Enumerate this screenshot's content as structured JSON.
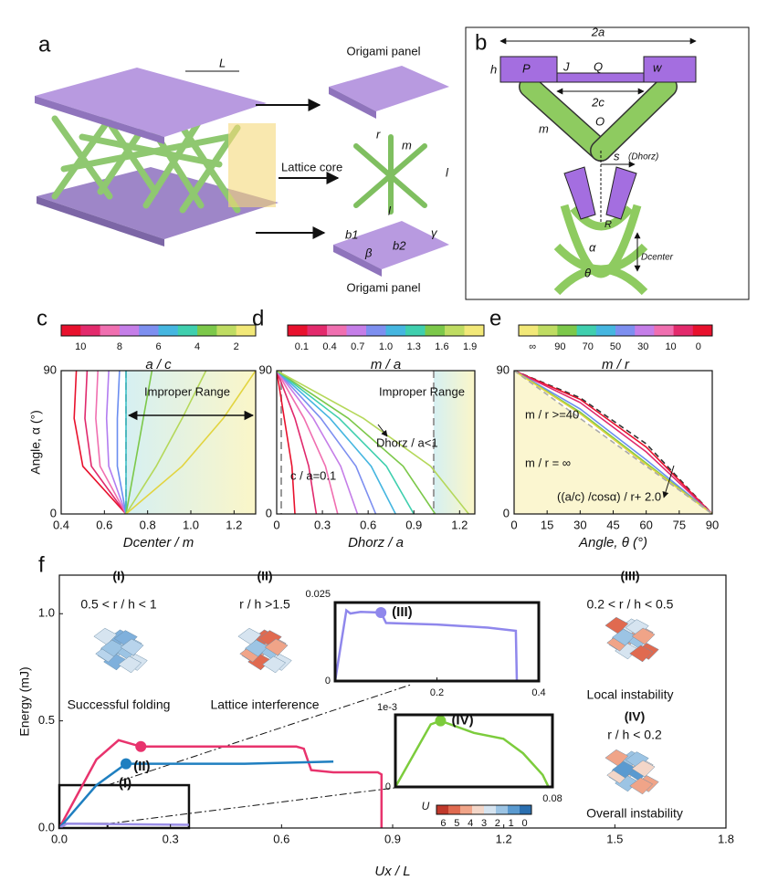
{
  "diagram_a": {
    "label": "a",
    "L": "L",
    "top_panel": "Origami panel",
    "core": "Lattice core",
    "r": "r",
    "m": "m",
    "l1": "l",
    "l2": "l",
    "b1": "b1",
    "b2": "b2",
    "beta": "β",
    "gamma": "γ",
    "bottom_panel": "Origami panel"
  },
  "diagram_b": {
    "label": "b",
    "texts": [
      "2a",
      "h",
      "P",
      "J",
      "Q",
      "w",
      "2c",
      "m",
      "O",
      "s",
      "(Dhorz)",
      "R",
      "α",
      "θ",
      "Dcenter"
    ]
  },
  "chart_data": [
    {
      "type": "line",
      "panel_label": "c",
      "xlabel": "Dcenter / m",
      "ylabel": "Angle, α (°)",
      "xlim": [
        0.4,
        1.3
      ],
      "ylim": [
        0,
        90
      ],
      "xticks": [
        0.4,
        0.6,
        0.8,
        {
          "value": 1,
          "label": "1.0"
        },
        1.2
      ],
      "yticks": [
        0,
        90
      ],
      "vlines": [
        0.7
      ],
      "colorbar": {
        "label": "a / c",
        "ticks": [
          10,
          8,
          6,
          4,
          2
        ],
        "colors": [
          "#e8112d",
          "#e32a6c",
          "#f06fb0",
          "#c57ee8",
          "#7d8ff0",
          "#45b6e0",
          "#3fcfae",
          "#7cc84a",
          "#bfdc62",
          "#f2e878"
        ]
      },
      "annotations": [
        "Improper Range"
      ],
      "series": [
        {
          "color": "#e8112d",
          "x": [
            0.7,
            0.5,
            0.46,
            0.47
          ],
          "values": [
            0,
            30,
            60,
            90
          ]
        },
        {
          "color": "#e0296d",
          "x": [
            0.7,
            0.54,
            0.51,
            0.52
          ],
          "values": [
            0,
            30,
            60,
            90
          ]
        },
        {
          "color": "#f06fb0",
          "x": [
            0.7,
            0.58,
            0.56,
            0.57
          ],
          "values": [
            0,
            30,
            60,
            90
          ]
        },
        {
          "color": "#b27cf0",
          "x": [
            0.7,
            0.62,
            0.61,
            0.62
          ],
          "values": [
            0,
            30,
            60,
            90
          ]
        },
        {
          "color": "#6a8df0",
          "x": [
            0.7,
            0.66,
            0.66,
            0.67
          ],
          "values": [
            0,
            30,
            60,
            90
          ]
        },
        {
          "color": "#3cc0c8",
          "x": [
            0.7,
            0.7,
            0.7,
            0.7
          ],
          "values": [
            0,
            30,
            60,
            90
          ]
        },
        {
          "color": "#7cc84a",
          "x": [
            0.7,
            0.74,
            0.78,
            0.82
          ],
          "values": [
            0,
            30,
            60,
            90
          ]
        },
        {
          "color": "#b5d85a",
          "x": [
            0.7,
            0.84,
            0.96,
            1.07
          ],
          "values": [
            0,
            30,
            60,
            90
          ]
        },
        {
          "color": "#e2d440",
          "x": [
            0.7,
            0.96,
            1.15,
            1.3
          ],
          "values": [
            0,
            30,
            60,
            90
          ]
        }
      ]
    },
    {
      "type": "line",
      "panel_label": "d",
      "xlabel": "Dhorz / a",
      "xlim": [
        0,
        1.3
      ],
      "ylim": [
        0,
        90
      ],
      "xticks": [
        0,
        0.3,
        0.6,
        0.9,
        1.2
      ],
      "yticks": [
        0,
        90
      ],
      "vlines": [
        0.03,
        1.03
      ],
      "colorbar": {
        "label": "m / a",
        "ticks": [
          0.1,
          0.4,
          0.7,
          {
            "value": 1,
            "label": "1.0"
          },
          1.3,
          1.6,
          1.9
        ],
        "colors": [
          "#e8112d",
          "#e32a6c",
          "#f06fb0",
          "#c57ee8",
          "#7d8ff0",
          "#45b6e0",
          "#3fcfae",
          "#7cc84a",
          "#bfdc62",
          "#f2e878"
        ]
      },
      "annotations": [
        "Improper Range",
        "c / a=0.1",
        "Dhorz / a<1"
      ],
      "series": [
        {
          "color": "#e8112d",
          "x": [
            0,
            0.05,
            0.1,
            0.12
          ],
          "values": [
            90,
            60,
            30,
            0
          ]
        },
        {
          "color": "#e0296d",
          "x": [
            0,
            0.12,
            0.21,
            0.26
          ],
          "values": [
            90,
            60,
            30,
            0
          ]
        },
        {
          "color": "#f06fb0",
          "x": [
            0,
            0.18,
            0.32,
            0.4
          ],
          "values": [
            90,
            60,
            30,
            0
          ]
        },
        {
          "color": "#c57ee8",
          "x": [
            0,
            0.24,
            0.42,
            0.53
          ],
          "values": [
            90,
            60,
            30,
            0
          ]
        },
        {
          "color": "#7d8ff0",
          "x": [
            0,
            0.29,
            0.52,
            0.65
          ],
          "values": [
            90,
            60,
            30,
            0
          ]
        },
        {
          "color": "#45b6e0",
          "x": [
            0,
            0.35,
            0.62,
            0.78
          ],
          "values": [
            90,
            60,
            30,
            0
          ]
        },
        {
          "color": "#3fcfae",
          "x": [
            0,
            0.41,
            0.72,
            0.9
          ],
          "values": [
            90,
            60,
            30,
            0
          ]
        },
        {
          "color": "#7cc84a",
          "x": [
            0,
            0.47,
            0.83,
            1.04
          ],
          "values": [
            90,
            60,
            30,
            0
          ]
        },
        {
          "color": "#b5d85a",
          "x": [
            0,
            0.57,
            1.01,
            1.26
          ],
          "values": [
            90,
            60,
            30,
            0
          ]
        }
      ]
    },
    {
      "type": "line",
      "panel_label": "e",
      "xlabel": "Angle, θ (°)",
      "xlim": [
        0,
        90
      ],
      "ylim": [
        0,
        90
      ],
      "xticks": [
        0,
        15,
        30,
        45,
        60,
        75,
        90
      ],
      "yticks": [
        0,
        90
      ],
      "colorbar": {
        "label": "m / r",
        "ticks": [
          "∞",
          90,
          70,
          50,
          30,
          10,
          0
        ],
        "colors": [
          "#f2e878",
          "#bfdc62",
          "#7cc84a",
          "#3fcfae",
          "#45b6e0",
          "#7d8ff0",
          "#c57ee8",
          "#f06fb0",
          "#e32a6c",
          "#e8112d"
        ]
      },
      "annotations": [
        "m / r >=40",
        "m / r = ∞",
        "((a/c) /cosα) / r+ 2.0"
      ],
      "series": [
        {
          "color": "#333333",
          "dash": true,
          "x": [
            0,
            30,
            60,
            90
          ],
          "values": [
            90,
            73,
            44,
            0
          ]
        },
        {
          "color": "#e8112d",
          "x": [
            0,
            30,
            60,
            90
          ],
          "values": [
            90,
            72,
            42,
            0
          ]
        },
        {
          "color": "#e0296d",
          "x": [
            0,
            30,
            60,
            90
          ],
          "values": [
            90,
            70,
            39,
            0
          ]
        },
        {
          "color": "#6a8df0",
          "x": [
            0,
            30,
            60,
            90
          ],
          "values": [
            90,
            66,
            34,
            0
          ]
        },
        {
          "color": "#7cc84a",
          "x": [
            0,
            30,
            60,
            90
          ],
          "values": [
            90,
            64,
            32,
            0
          ]
        },
        {
          "color": "#e2d440",
          "x": [
            0,
            30,
            60,
            90
          ],
          "values": [
            90,
            63,
            31,
            0
          ]
        },
        {
          "color": "#aaaaaa",
          "dash": true,
          "x": [
            0,
            30,
            60,
            90
          ],
          "values": [
            90,
            60,
            30,
            0
          ]
        }
      ]
    },
    {
      "type": "line",
      "panel_label": "f",
      "xlabel": "Ux / L",
      "ylabel": "Energy (mJ)",
      "xlim": [
        0,
        1.8
      ],
      "ylim": [
        0,
        1.18
      ],
      "xticks": [
        {
          "value": 0,
          "label": "0.0"
        },
        0.3,
        0.6,
        0.9,
        1.2,
        1.5,
        1.8
      ],
      "yticks": [
        {
          "value": 0,
          "label": "0.0"
        },
        0.5,
        {
          "value": 1,
          "label": "1.0"
        }
      ],
      "colorbar": {
        "label": "U",
        "ticks": [
          6,
          5,
          4,
          3,
          2,
          1,
          0
        ],
        "colors": [
          "#c0392b",
          "#e06a50",
          "#f0a488",
          "#f3d6c8",
          "#d6e4f0",
          "#9cc4e4",
          "#5a9ad0",
          "#2a6fb0"
        ]
      },
      "annotations": [
        "(I)",
        "0.5 < r / h < 1",
        "Successful folding",
        "(II)",
        "r / h >1.5",
        "Lattice interference",
        "(III)",
        "0.2 < r / h < 0.5",
        "Local instability",
        "(IV)",
        "r / h < 0.2",
        "Overall instability"
      ],
      "series": [
        {
          "name": "(II)",
          "color": "#e8336d",
          "x": [
            0,
            0.1,
            0.16,
            0.22,
            0.4,
            0.64,
            0.66,
            0.68,
            0.74,
            0.86,
            0.87,
            0.87
          ],
          "values": [
            0,
            0.32,
            0.41,
            0.38,
            0.38,
            0.38,
            0.37,
            0.27,
            0.26,
            0.26,
            0.25,
            0
          ]
        },
        {
          "name": "(I)",
          "color": "#1f7fc0",
          "x": [
            0,
            0.1,
            0.18,
            0.3,
            0.5,
            0.74
          ],
          "values": [
            0,
            0.2,
            0.3,
            0.3,
            0.3,
            0.31
          ]
        },
        {
          "color": "#9b8fe8",
          "x": [
            0,
            0.02,
            0.35
          ],
          "values": [
            0,
            0.02,
            0.015
          ]
        }
      ]
    },
    {
      "type": "line",
      "xlim": [
        0,
        0.4
      ],
      "ylim": [
        0,
        0.025
      ],
      "xticks": [
        0.2,
        0.4
      ],
      "yticks": [
        0,
        0.025
      ],
      "series": [
        {
          "name": "(III)",
          "color": "#8f87ec",
          "x": [
            0,
            0.022,
            0.03,
            0.05,
            0.09,
            0.1,
            0.2,
            0.3,
            0.355,
            0.357
          ],
          "values": [
            0,
            0.0225,
            0.0215,
            0.022,
            0.0218,
            0.0185,
            0.018,
            0.017,
            0.016,
            0
          ]
        }
      ]
    },
    {
      "type": "line",
      "xlim": [
        0,
        0.08
      ],
      "ylim": [
        0,
        0.0006
      ],
      "xticks": [
        0.08
      ],
      "yticks": [
        0
      ],
      "y_multiplier": "1e-3",
      "series": [
        {
          "name": "(IV)",
          "color": "#7ccc3c",
          "x": [
            0,
            0.018,
            0.023,
            0.04,
            0.055,
            0.065,
            0.075,
            0.078
          ],
          "values": [
            0,
            0.00052,
            0.00055,
            0.00045,
            0.0004,
            0.00028,
            0.0001,
            0
          ]
        }
      ]
    }
  ]
}
